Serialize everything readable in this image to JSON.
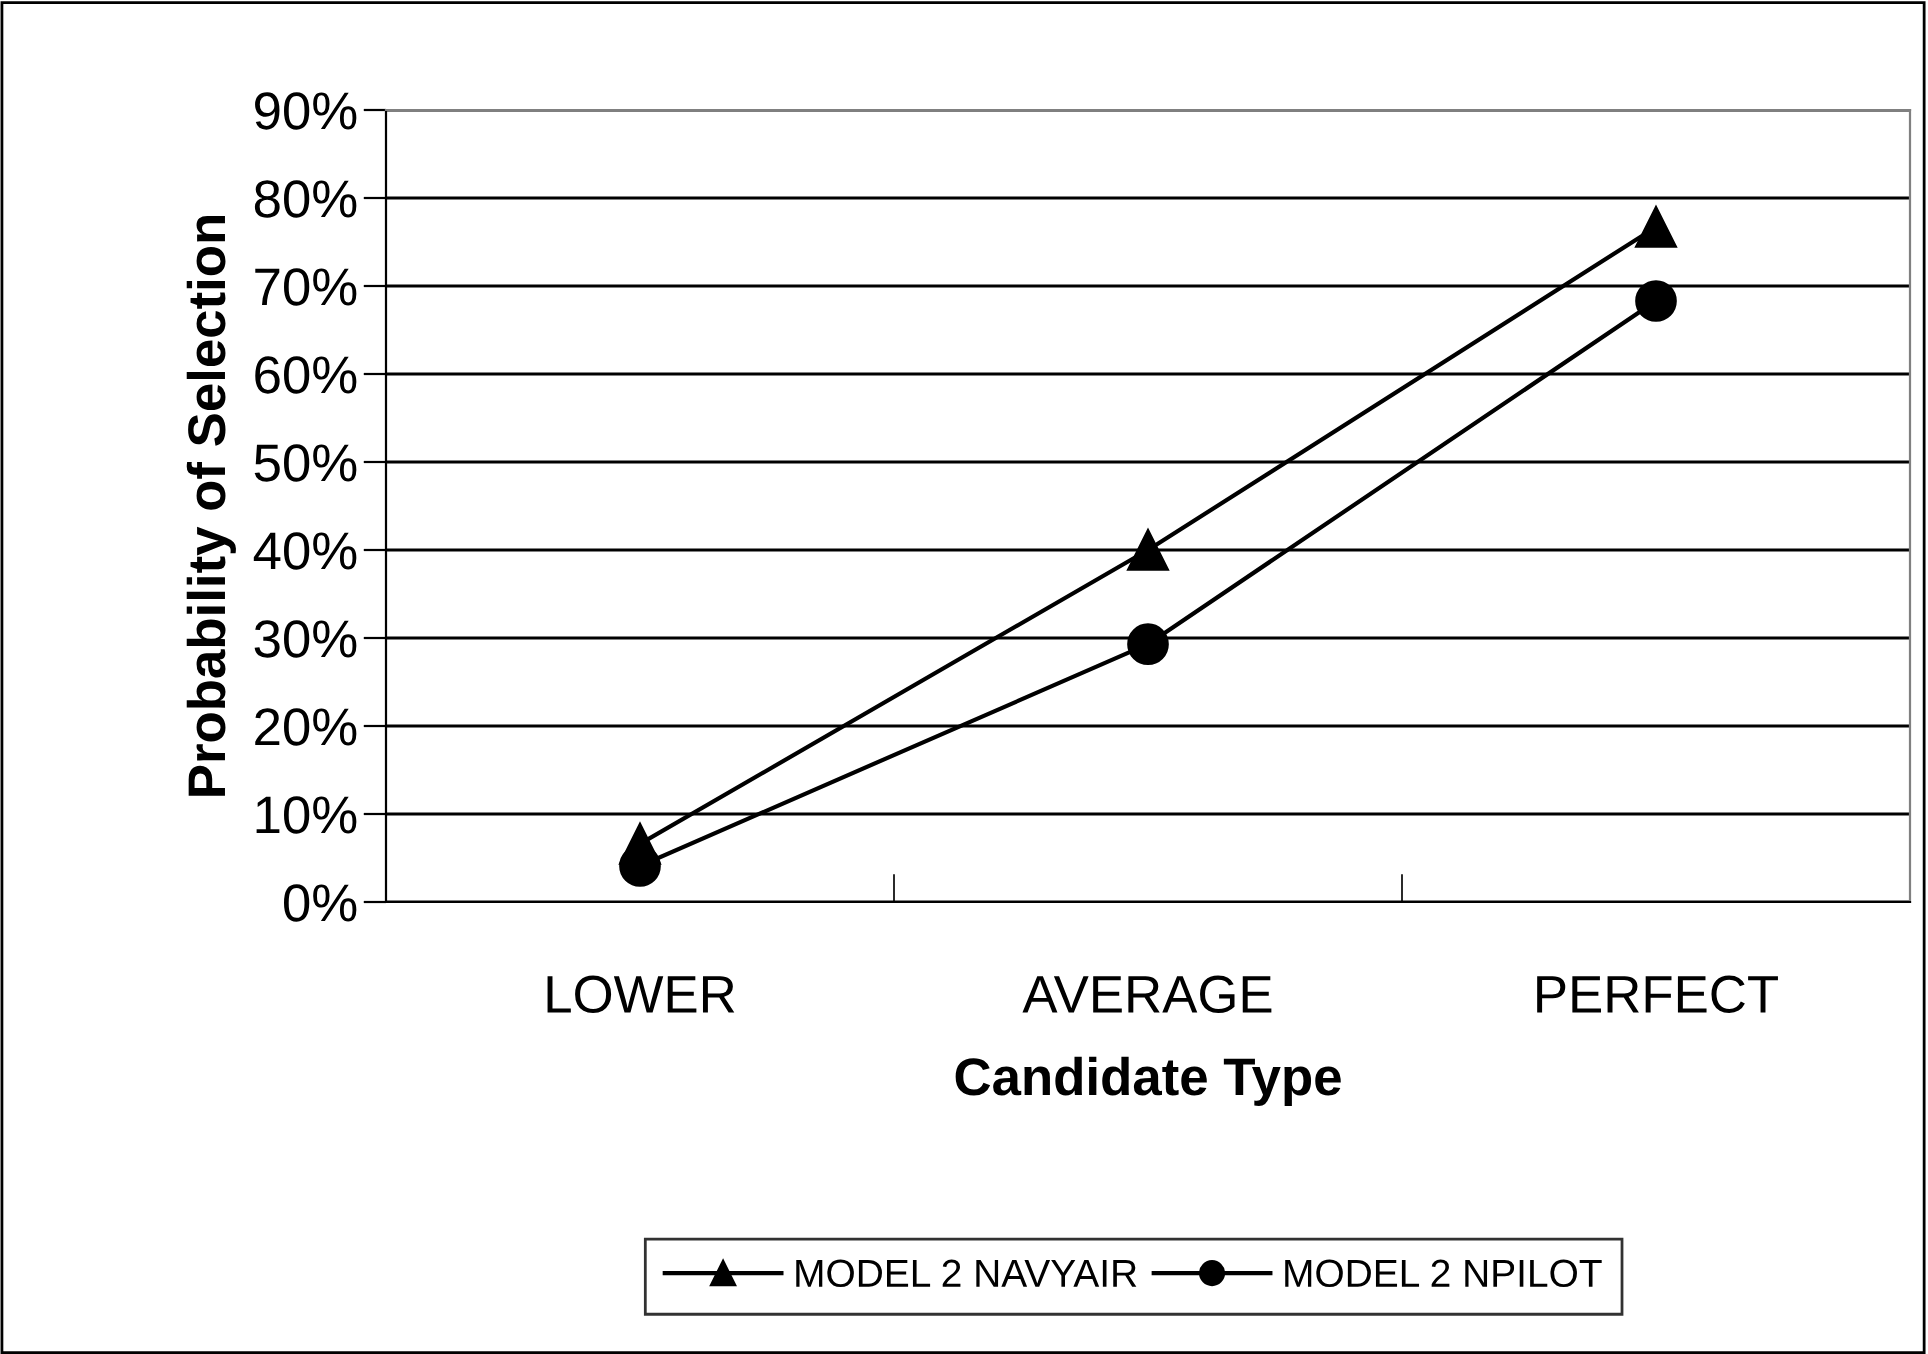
{
  "chart_data": {
    "type": "line",
    "xlabel": "Candidate Type",
    "ylabel": "Probability of Selection",
    "categories": [
      "LOWER",
      "AVERAGE",
      "PERFECT"
    ],
    "series": [
      {
        "name": "MODEL 2 NAVYAIR",
        "color": "#000000",
        "marker": "triangle",
        "values": [
          6.6,
          40,
          76.7
        ]
      },
      {
        "name": "MODEL 2 NPILOT",
        "color": "#000000",
        "marker": "circle",
        "values": [
          4.1,
          29.3,
          68.3
        ]
      }
    ],
    "ylim": [
      0,
      90
    ],
    "yticks": [
      {
        "value": 0,
        "label": "0%"
      },
      {
        "value": 10,
        "label": "10%"
      },
      {
        "value": 20,
        "label": "20%"
      },
      {
        "value": 30,
        "label": "30%"
      },
      {
        "value": 40,
        "label": "40%"
      },
      {
        "value": 50,
        "label": "50%"
      },
      {
        "value": 60,
        "label": "60%"
      },
      {
        "value": 70,
        "label": "70%"
      },
      {
        "value": 80,
        "label": "80%"
      },
      {
        "value": 90,
        "label": "90%"
      }
    ],
    "grid": "y",
    "legend": "bottom",
    "line_style": "solid"
  }
}
